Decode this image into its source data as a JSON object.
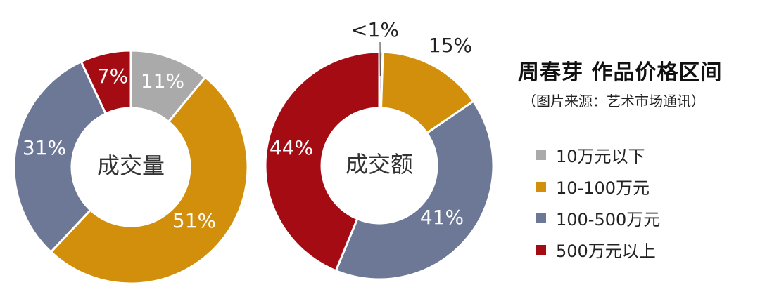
{
  "chart_data": [
    {
      "type": "pie",
      "donut": true,
      "center_label": "成交量",
      "categories": [
        "10万元以下",
        "10-100万元",
        "100-500万元",
        "500万元以上"
      ],
      "values": [
        11,
        51,
        31,
        7
      ],
      "labels": [
        "11%",
        "51%",
        "31%",
        "7%"
      ]
    },
    {
      "type": "pie",
      "donut": true,
      "center_label": "成交额",
      "categories": [
        "10万元以下",
        "10-100万元",
        "100-500万元",
        "500万元以上"
      ],
      "values": [
        0.5,
        15,
        41,
        44
      ],
      "labels": [
        "<1%",
        "15%",
        "41%",
        "44%"
      ]
    }
  ],
  "title": "周春芽 作品价格区间",
  "source": "（图片来源：艺术市场通讯）",
  "legend": {
    "placement": "right",
    "items": [
      {
        "label": "10万元以下",
        "color": "#aaaaaa"
      },
      {
        "label": "10-100万元",
        "color": "#d18f0c"
      },
      {
        "label": "100-500万元",
        "color": "#6c7895"
      },
      {
        "label": "500万元以上",
        "color": "#a50b12"
      }
    ]
  },
  "colors": [
    "#aaaaaa",
    "#d18f0c",
    "#6c7895",
    "#a50b12"
  ]
}
